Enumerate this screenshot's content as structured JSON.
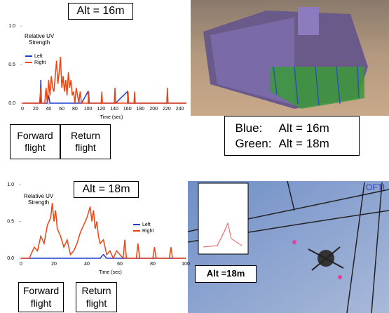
{
  "chart_data": [
    {
      "type": "line",
      "y_label": "Relative UV Strength",
      "x_label": "Time (sec)",
      "legend": "upper-left",
      "grid": false,
      "xlim": [
        0,
        250
      ],
      "xticks": [
        0,
        20,
        40,
        60,
        80,
        100,
        120,
        140,
        160,
        180,
        200,
        220,
        240
      ],
      "ylim": [
        0,
        1
      ],
      "yticks": [
        {
          "value": 0,
          "label": "0.0"
        },
        {
          "value": 0.5,
          "label": "0.5"
        },
        {
          "value": 1,
          "label": "1.0"
        }
      ],
      "x": [
        0,
        10,
        26,
        27,
        28,
        29,
        30,
        32,
        34,
        35,
        36,
        38,
        40,
        42,
        44,
        46,
        48,
        50,
        52,
        54,
        56,
        58,
        60,
        62,
        64,
        66,
        68,
        70,
        72,
        74,
        76,
        78,
        80,
        82,
        86,
        88,
        90,
        100,
        101,
        102,
        104,
        120,
        121,
        122,
        140,
        141,
        142,
        160,
        161,
        162,
        170,
        171,
        172,
        220,
        221,
        222,
        250
      ],
      "series": [
        {
          "name": "Left",
          "color": "#1f3fd0",
          "values": [
            0,
            0,
            0,
            0,
            0.3,
            0,
            0,
            0,
            0,
            0,
            0,
            0,
            0.1,
            0,
            0,
            0,
            0,
            0,
            0,
            0,
            0,
            0,
            0,
            0,
            0,
            0,
            0,
            0,
            0,
            0,
            0,
            0,
            0,
            0,
            0,
            0,
            0,
            0.15,
            0,
            0,
            0,
            0,
            0,
            0,
            0,
            0,
            0,
            0.15,
            0,
            0,
            0,
            0,
            0,
            0,
            0,
            0,
            0
          ]
        },
        {
          "name": "Right",
          "color": "#ee4411",
          "values": [
            0,
            0,
            0,
            0.1,
            0.2,
            0,
            0,
            0,
            0,
            0.1,
            0.2,
            0,
            0.3,
            0.1,
            0.35,
            0.2,
            0.15,
            0.35,
            0.55,
            0.25,
            0.4,
            0.6,
            0.2,
            0.35,
            0.15,
            0.3,
            0.1,
            0.4,
            0.2,
            0.3,
            0.1,
            0.15,
            0,
            0.2,
            0,
            0.15,
            0,
            0,
            0.15,
            0,
            0,
            0,
            0.15,
            0,
            0,
            0.2,
            0,
            0,
            0.15,
            0,
            0,
            0.15,
            0,
            0,
            0.2,
            0,
            0
          ]
        }
      ],
      "annotations": [
        "Alt = 16m",
        "Forward flight",
        "Return flight"
      ]
    },
    {
      "type": "line",
      "y_label": "Relative UV Strength",
      "x_label": "Time (sec)",
      "legend": "center-right",
      "grid": false,
      "xlim": [
        0,
        100
      ],
      "xticks": [
        0,
        20,
        40,
        60,
        80,
        100
      ],
      "ylim": [
        0,
        1
      ],
      "yticks": [
        {
          "value": 0,
          "label": "0.0"
        },
        {
          "value": 0.5,
          "label": "0.5"
        },
        {
          "value": 1,
          "label": "1.0"
        }
      ],
      "x": [
        0,
        5,
        8,
        10,
        12,
        14,
        16,
        18,
        19,
        20,
        21,
        22,
        24,
        26,
        28,
        30,
        32,
        34,
        36,
        38,
        40,
        42,
        43,
        44,
        45,
        46,
        47,
        48,
        50,
        52,
        54,
        56,
        58,
        62,
        63,
        64,
        70,
        71,
        72,
        80,
        81,
        82,
        90,
        91,
        92,
        100
      ],
      "series": [
        {
          "name": "Left",
          "color": "#1f3fd0",
          "values": [
            0,
            0,
            0,
            0,
            0,
            0,
            0,
            0,
            0,
            0,
            0,
            0,
            0,
            0,
            0,
            0,
            0,
            0,
            0,
            0,
            0,
            0,
            0,
            0,
            0,
            0,
            0,
            0,
            0.05,
            0,
            0,
            0,
            0,
            0,
            0,
            0,
            0,
            0,
            0,
            0,
            0,
            0,
            0,
            0,
            0,
            0
          ]
        },
        {
          "name": "Right",
          "color": "#ee4411",
          "values": [
            0,
            0,
            0.15,
            0.1,
            0.3,
            0.2,
            0.45,
            0.55,
            0.75,
            0.5,
            0.65,
            0.4,
            0.3,
            0.15,
            0.25,
            0.05,
            0.1,
            0.2,
            0.35,
            0.45,
            0.55,
            0.7,
            0.5,
            0.65,
            0.4,
            0.5,
            0.3,
            0.2,
            0.25,
            0.05,
            0.1,
            0,
            0.1,
            0,
            0.25,
            0,
            0,
            0.2,
            0,
            0,
            0.15,
            0,
            0,
            0.15,
            0,
            0
          ]
        }
      ],
      "annotations": [
        "Alt = 18m",
        "Forward flight",
        "Return flight"
      ]
    }
  ],
  "photos": [
    {
      "caption": [
        "Blue:",
        "Alt = 16m",
        "Green:",
        "Alt = 18m"
      ]
    },
    {
      "label": "Alt =18m",
      "corner_text": "OFTL"
    }
  ]
}
